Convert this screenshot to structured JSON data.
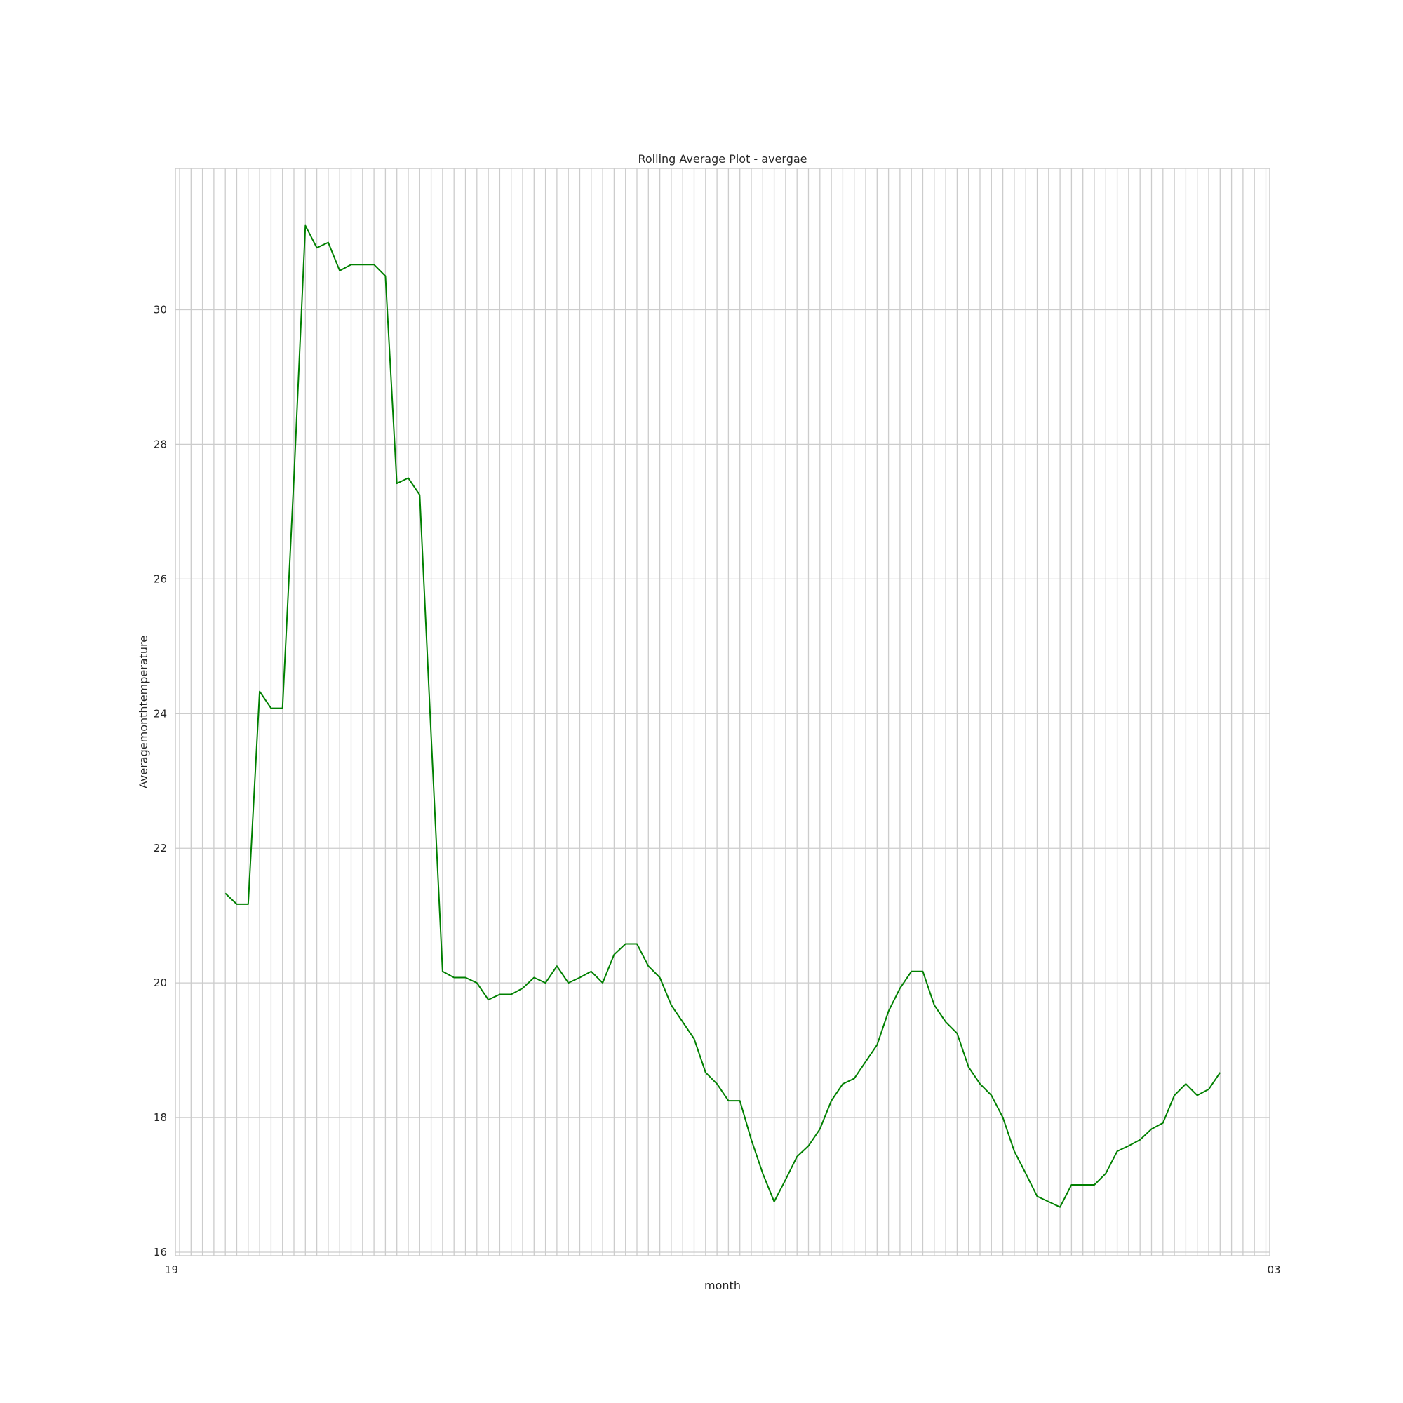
{
  "chart_data": {
    "type": "line",
    "title": "Rolling Average Plot - avergae",
    "xlabel": "month",
    "ylabel": "Averagemonthtemperature",
    "ylim": [
      16,
      32
    ],
    "yticks": [
      16,
      18,
      20,
      22,
      24,
      26,
      28,
      30
    ],
    "grid": true,
    "n_months": 96,
    "first_labeled_tick": "19",
    "last_labeled_tick": "03",
    "series": [
      {
        "color": "#008000",
        "start_index": 4,
        "values": [
          21.33,
          21.17,
          21.17,
          24.33,
          24.08,
          24.08,
          27.5,
          31.25,
          30.92,
          31.0,
          30.58,
          30.67,
          30.67,
          30.67,
          30.5,
          27.42,
          27.5,
          27.25,
          23.67,
          20.17,
          20.08,
          20.08,
          20.0,
          19.75,
          19.83,
          19.83,
          19.92,
          20.08,
          20.0,
          20.25,
          20.0,
          20.08,
          20.17,
          20.0,
          20.42,
          20.58,
          20.58,
          20.25,
          20.08,
          19.67,
          19.42,
          19.17,
          18.67,
          18.5,
          18.25,
          18.25,
          17.67,
          17.17,
          16.75,
          17.08,
          17.42,
          17.58,
          17.83,
          18.25,
          18.5,
          18.58,
          18.83,
          19.08,
          19.58,
          19.92,
          20.17,
          20.17,
          19.67,
          19.42,
          19.25,
          18.75,
          18.5,
          18.33,
          18.0,
          17.5,
          17.17,
          16.83,
          16.75,
          16.67,
          17.0,
          17.0,
          17.0,
          17.17,
          17.5,
          17.58,
          17.67,
          17.83,
          17.92,
          18.33,
          18.5,
          18.33,
          18.42,
          18.67
        ]
      }
    ]
  }
}
